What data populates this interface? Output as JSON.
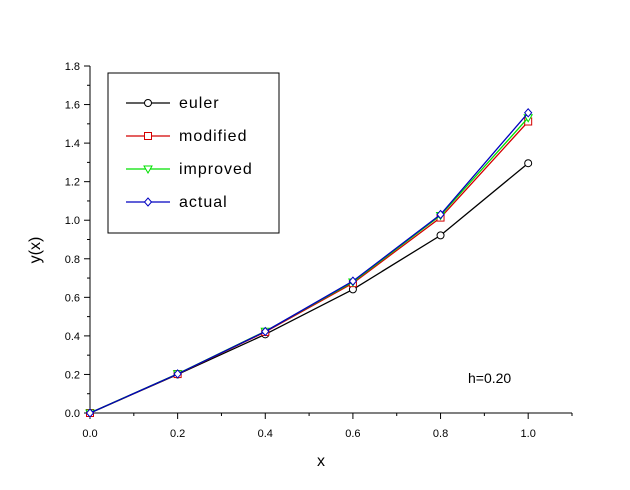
{
  "chart_data": {
    "type": "line",
    "title": "",
    "xlabel": "x",
    "ylabel": "y(x)",
    "xlim": [
      0.0,
      1.1
    ],
    "ylim": [
      0.0,
      1.8
    ],
    "x_ticks": [
      "0.0",
      "0.2",
      "0.4",
      "0.6",
      "0.8",
      "1.0"
    ],
    "y_ticks": [
      "0.0",
      "0.2",
      "0.4",
      "0.6",
      "0.8",
      "1.0",
      "1.2",
      "1.4",
      "1.6",
      "1.8"
    ],
    "grid": false,
    "legend_position": "top-left",
    "annotation": "h=0.20",
    "x": [
      0.0,
      0.2,
      0.4,
      0.6,
      0.8,
      1.0
    ],
    "series": [
      {
        "name": "euler",
        "color": "#000000",
        "marker": "circle",
        "values": [
          0.0,
          0.2,
          0.408,
          0.6412,
          0.92144,
          1.29573
        ]
      },
      {
        "name": "modified",
        "color": "#d40000",
        "marker": "square",
        "values": [
          0.0,
          0.202,
          0.42042,
          0.67351,
          1.01368,
          1.51202
        ]
      },
      {
        "name": "improved",
        "color": "#00e000",
        "marker": "triangle-down",
        "values": [
          0.0,
          0.2034,
          0.4238,
          0.6795,
          1.0248,
          1.5317
        ]
      },
      {
        "name": "actual",
        "color": "#0000c0",
        "marker": "diamond",
        "values": [
          0.0,
          0.2027,
          0.4228,
          0.6841,
          1.0296,
          1.5574
        ]
      }
    ]
  }
}
